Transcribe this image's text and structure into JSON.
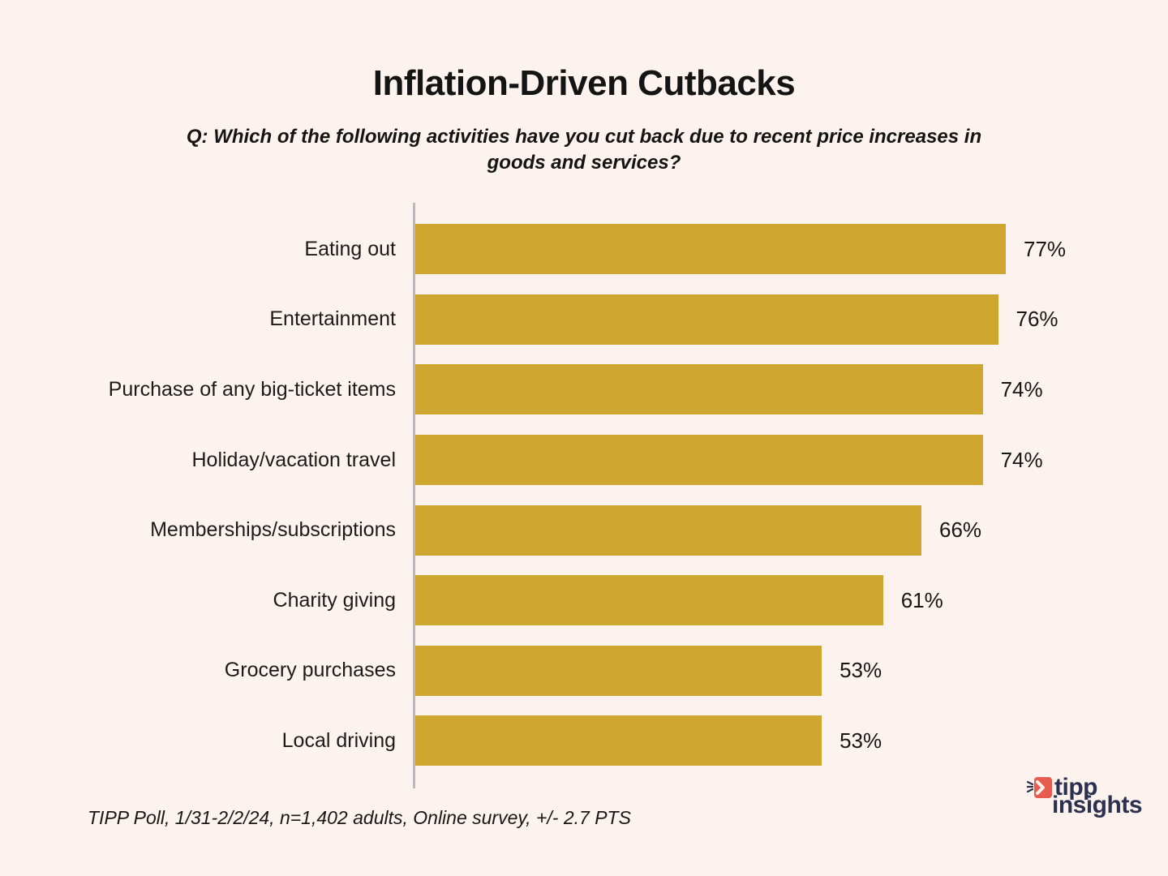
{
  "header": {
    "title": "Inflation-Driven Cutbacks",
    "question_lines": [
      "Q: Which of the following activities have you cut back due to recent price increases in",
      "goods and services?"
    ]
  },
  "chart_data": {
    "type": "bar",
    "orientation": "horizontal",
    "title": "Inflation-Driven Cutbacks",
    "question": "Q: Which of the following activities have you cut back due to recent price increases in goods and services?",
    "categories": [
      "Eating out",
      "Entertainment",
      "Purchase of any big-ticket items",
      "Holiday/vacation travel",
      "Memberships/subscriptions",
      "Charity giving",
      "Grocery purchases",
      "Local driving"
    ],
    "values": [
      77,
      76,
      74,
      74,
      66,
      61,
      53,
      53
    ],
    "value_suffix": "%",
    "value_labels": "outside-end",
    "xlim": [
      0,
      100
    ],
    "grid": false,
    "legend": false,
    "bar_color": "#CFA62F",
    "axis_line_color": "#B8B9BF",
    "background_color": "#FDF3EE",
    "text_color": "#161616"
  },
  "footer": {
    "source": "TIPP Poll, 1/31-2/2/24, n=1,402 adults, Online survey, +/- 2.7 PTS"
  },
  "logo": {
    "line1": "tipp",
    "line2": "insights",
    "icon": "tipp-arrow-icon",
    "navy": "#2D3150",
    "red": "#E85C50"
  }
}
